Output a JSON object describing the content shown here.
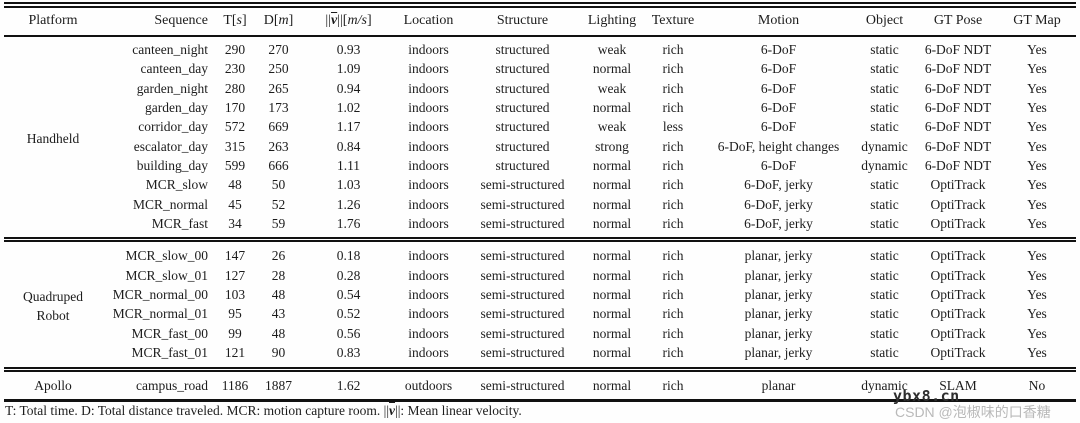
{
  "table": {
    "columns": {
      "platform": "Platform",
      "sequence": "Sequence",
      "t_pre": "T[",
      "t_it": "s",
      "t_post": "]",
      "d_pre": "D[",
      "d_it": "m",
      "d_post": "]",
      "v_pre": "||",
      "v_sym": "v",
      "v_mid": "||[",
      "v_it": "m/s",
      "v_post": "]",
      "location": "Location",
      "structure": "Structure",
      "lighting": "Lighting",
      "texture": "Texture",
      "motion": "Motion",
      "object": "Object",
      "gt_pose": "GT Pose",
      "gt_map": "GT Map"
    },
    "groups": [
      {
        "platform": "Handheld",
        "rows": [
          [
            "canteen_night",
            "290",
            "270",
            "0.93",
            "indoors",
            "structured",
            "weak",
            "rich",
            "6-DoF",
            "static",
            "6-DoF NDT",
            "Yes"
          ],
          [
            "canteen_day",
            "230",
            "250",
            "1.09",
            "indoors",
            "structured",
            "normal",
            "rich",
            "6-DoF",
            "static",
            "6-DoF NDT",
            "Yes"
          ],
          [
            "garden_night",
            "280",
            "265",
            "0.94",
            "indoors",
            "structured",
            "weak",
            "rich",
            "6-DoF",
            "static",
            "6-DoF NDT",
            "Yes"
          ],
          [
            "garden_day",
            "170",
            "173",
            "1.02",
            "indoors",
            "structured",
            "normal",
            "rich",
            "6-DoF",
            "static",
            "6-DoF NDT",
            "Yes"
          ],
          [
            "corridor_day",
            "572",
            "669",
            "1.17",
            "indoors",
            "structured",
            "weak",
            "less",
            "6-DoF",
            "static",
            "6-DoF NDT",
            "Yes"
          ],
          [
            "escalator_day",
            "315",
            "263",
            "0.84",
            "indoors",
            "structured",
            "strong",
            "rich",
            "6-DoF, height changes",
            "dynamic",
            "6-DoF NDT",
            "Yes"
          ],
          [
            "building_day",
            "599",
            "666",
            "1.11",
            "indoors",
            "structured",
            "normal",
            "rich",
            "6-DoF",
            "dynamic",
            "6-DoF NDT",
            "Yes"
          ],
          [
            "MCR_slow",
            "48",
            "50",
            "1.03",
            "indoors",
            "semi-structured",
            "normal",
            "rich",
            "6-DoF, jerky",
            "static",
            "OptiTrack",
            "Yes"
          ],
          [
            "MCR_normal",
            "45",
            "52",
            "1.26",
            "indoors",
            "semi-structured",
            "normal",
            "rich",
            "6-DoF, jerky",
            "static",
            "OptiTrack",
            "Yes"
          ],
          [
            "MCR_fast",
            "34",
            "59",
            "1.76",
            "indoors",
            "semi-structured",
            "normal",
            "rich",
            "6-DoF, jerky",
            "static",
            "OptiTrack",
            "Yes"
          ]
        ]
      },
      {
        "platform": "Quadruped\nRobot",
        "rows": [
          [
            "MCR_slow_00",
            "147",
            "26",
            "0.18",
            "indoors",
            "semi-structured",
            "normal",
            "rich",
            "planar, jerky",
            "static",
            "OptiTrack",
            "Yes"
          ],
          [
            "MCR_slow_01",
            "127",
            "28",
            "0.28",
            "indoors",
            "semi-structured",
            "normal",
            "rich",
            "planar, jerky",
            "static",
            "OptiTrack",
            "Yes"
          ],
          [
            "MCR_normal_00",
            "103",
            "48",
            "0.54",
            "indoors",
            "semi-structured",
            "normal",
            "rich",
            "planar, jerky",
            "static",
            "OptiTrack",
            "Yes"
          ],
          [
            "MCR_normal_01",
            "95",
            "43",
            "0.52",
            "indoors",
            "semi-structured",
            "normal",
            "rich",
            "planar, jerky",
            "static",
            "OptiTrack",
            "Yes"
          ],
          [
            "MCR_fast_00",
            "99",
            "48",
            "0.56",
            "indoors",
            "semi-structured",
            "normal",
            "rich",
            "planar, jerky",
            "static",
            "OptiTrack",
            "Yes"
          ],
          [
            "MCR_fast_01",
            "121",
            "90",
            "0.83",
            "indoors",
            "semi-structured",
            "normal",
            "rich",
            "planar, jerky",
            "static",
            "OptiTrack",
            "Yes"
          ]
        ]
      },
      {
        "platform": "Apollo",
        "rows": [
          [
            "campus_road",
            "1186",
            "1887",
            "1.62",
            "outdoors",
            "semi-structured",
            "normal",
            "rich",
            "planar",
            "dynamic",
            "SLAM",
            "No"
          ]
        ]
      }
    ]
  },
  "footnote": {
    "part1": "T: Total time. D: Total distance traveled. MCR: motion capture room. ||",
    "vsym": "v",
    "part2": "||: Mean linear velocity."
  },
  "watermark": {
    "site": "ybx8.cn",
    "csdn": "CSDN @泡椒味的口香糖"
  }
}
